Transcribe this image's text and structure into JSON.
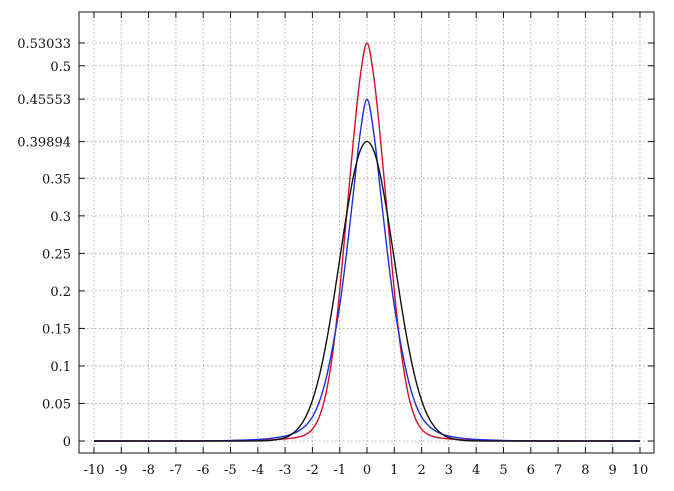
{
  "chart_data": {
    "type": "line",
    "title": "",
    "xlabel": "",
    "ylabel": "",
    "xlim": [
      -10,
      10
    ],
    "ylim": [
      0,
      0.55
    ],
    "grid": true,
    "x_ticks": [
      -10,
      -9,
      -8,
      -7,
      -6,
      -5,
      -4,
      -3,
      -2,
      -1,
      0,
      1,
      2,
      3,
      4,
      5,
      6,
      7,
      8,
      9,
      10
    ],
    "y_ticks": [
      {
        "value": 0,
        "label": "0"
      },
      {
        "value": 0.05,
        "label": "0.05"
      },
      {
        "value": 0.1,
        "label": "0.1"
      },
      {
        "value": 0.15,
        "label": "0.15"
      },
      {
        "value": 0.2,
        "label": "0.2"
      },
      {
        "value": 0.25,
        "label": "0.25"
      },
      {
        "value": 0.3,
        "label": "0.3"
      },
      {
        "value": 0.35,
        "label": "0.35"
      },
      {
        "value": 0.39894,
        "label": "0.39894"
      },
      {
        "value": 0.45553,
        "label": "0.45553"
      },
      {
        "value": 0.5,
        "label": "0.5"
      },
      {
        "value": 0.53033,
        "label": "0.53033"
      }
    ],
    "x": [
      -10,
      -6,
      -5,
      -4,
      -3.5,
      -3,
      -2.75,
      -2.5,
      -2.25,
      -2,
      -1.75,
      -1.5,
      -1.25,
      -1,
      -0.75,
      -0.5,
      -0.25,
      0,
      0.25,
      0.5,
      0.75,
      1,
      1.25,
      1.5,
      1.75,
      2,
      2.25,
      2.5,
      2.75,
      3,
      3.5,
      4,
      5,
      6,
      10
    ],
    "series": [
      {
        "color": "#d0102a",
        "values": [
          0,
          0,
          0.0003,
          0.001,
          0.0015,
          0.0027,
          0.0037,
          0.0053,
          0.0085,
          0.0157,
          0.032,
          0.064,
          0.119,
          0.2,
          0.3,
          0.4,
          0.485,
          0.53033,
          0.485,
          0.4,
          0.3,
          0.2,
          0.119,
          0.064,
          0.032,
          0.0157,
          0.0085,
          0.0053,
          0.0037,
          0.0027,
          0.0015,
          0.001,
          0.0003,
          0,
          0
        ]
      },
      {
        "color": "#1f2fd6",
        "values": [
          0,
          0.0002,
          0.0008,
          0.0021,
          0.0036,
          0.0066,
          0.0093,
          0.0135,
          0.0205,
          0.032,
          0.052,
          0.083,
          0.127,
          0.18,
          0.25,
          0.33,
          0.41,
          0.45553,
          0.41,
          0.33,
          0.25,
          0.18,
          0.127,
          0.083,
          0.052,
          0.032,
          0.0205,
          0.0135,
          0.0093,
          0.0066,
          0.0036,
          0.0021,
          0.0008,
          0.0002,
          0
        ]
      },
      {
        "color": "#111111",
        "values": [
          0,
          0,
          0,
          0.0001,
          0.0009,
          0.0044,
          0.0091,
          0.0175,
          0.0317,
          0.054,
          0.0863,
          0.1295,
          0.1826,
          0.242,
          0.3011,
          0.3521,
          0.3867,
          0.39894,
          0.3867,
          0.3521,
          0.3011,
          0.242,
          0.1826,
          0.1295,
          0.0863,
          0.054,
          0.0317,
          0.0175,
          0.0091,
          0.0044,
          0.0009,
          0.0001,
          0,
          0,
          0
        ]
      }
    ]
  }
}
